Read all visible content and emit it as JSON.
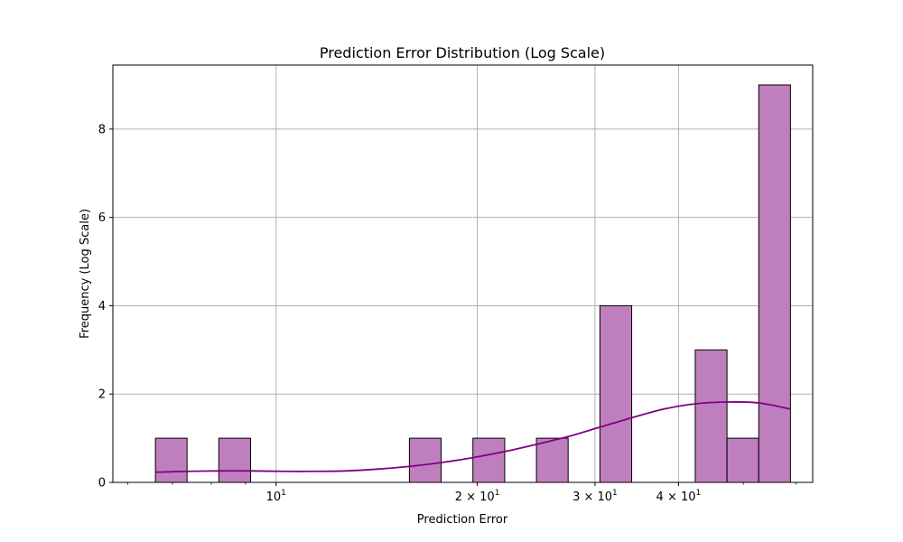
{
  "chart_data": {
    "type": "bar",
    "title": "Prediction Error Distribution (Log Scale)",
    "xlabel": "Prediction Error",
    "ylabel": "Frequency (Log Scale)",
    "x_scale": "log",
    "xlim": [
      5.7,
      63.5
    ],
    "ylim": [
      0,
      9.45
    ],
    "grid": true,
    "bar_color": "#bf7fbf",
    "bar_edge_color": "#000000",
    "kde_color": "#800080",
    "bins": [
      {
        "x0": 6.6,
        "x1": 7.36,
        "count": 1
      },
      {
        "x0": 7.36,
        "x1": 8.21,
        "count": 0
      },
      {
        "x0": 8.21,
        "x1": 9.16,
        "count": 1
      },
      {
        "x0": 9.16,
        "x1": 10.22,
        "count": 0
      },
      {
        "x0": 10.22,
        "x1": 11.4,
        "count": 0
      },
      {
        "x0": 11.4,
        "x1": 12.72,
        "count": 0
      },
      {
        "x0": 12.72,
        "x1": 14.19,
        "count": 0
      },
      {
        "x0": 14.19,
        "x1": 15.83,
        "count": 0
      },
      {
        "x0": 15.83,
        "x1": 17.66,
        "count": 1
      },
      {
        "x0": 17.66,
        "x1": 19.7,
        "count": 0
      },
      {
        "x0": 19.7,
        "x1": 21.98,
        "count": 1
      },
      {
        "x0": 21.98,
        "x1": 24.52,
        "count": 0
      },
      {
        "x0": 24.52,
        "x1": 27.35,
        "count": 1
      },
      {
        "x0": 27.35,
        "x1": 30.51,
        "count": 0
      },
      {
        "x0": 30.51,
        "x1": 34.04,
        "count": 4
      },
      {
        "x0": 34.04,
        "x1": 37.98,
        "count": 0
      },
      {
        "x0": 37.98,
        "x1": 42.37,
        "count": 0
      },
      {
        "x0": 42.37,
        "x1": 47.27,
        "count": 3
      },
      {
        "x0": 47.27,
        "x1": 52.73,
        "count": 1
      },
      {
        "x0": 52.73,
        "x1": 58.82,
        "count": 9
      }
    ],
    "kde": {
      "x": [
        6.6,
        7.4,
        8.2,
        9.2,
        10.2,
        11.4,
        12.7,
        14.2,
        15.8,
        17.7,
        19.7,
        22.0,
        24.5,
        27.4,
        30.5,
        34.0,
        38.0,
        42.4,
        47.3,
        52.7,
        58.8
      ],
      "y": [
        0.23,
        0.25,
        0.26,
        0.26,
        0.25,
        0.25,
        0.26,
        0.3,
        0.36,
        0.45,
        0.56,
        0.7,
        0.86,
        1.04,
        1.25,
        1.46,
        1.66,
        1.78,
        1.82,
        1.8,
        1.66
      ]
    },
    "x_ticks": [
      {
        "value": 10,
        "base": "10",
        "exp": "1",
        "coef": ""
      },
      {
        "value": 20,
        "base": "10",
        "exp": "1",
        "coef": "2"
      },
      {
        "value": 30,
        "base": "10",
        "exp": "1",
        "coef": "3"
      },
      {
        "value": 40,
        "base": "10",
        "exp": "1",
        "coef": "4"
      }
    ],
    "x_minor_ticks": [
      6,
      7,
      8,
      9,
      50,
      60
    ],
    "y_ticks": [
      {
        "value": 0,
        "label": "0"
      },
      {
        "value": 2,
        "label": "2"
      },
      {
        "value": 4,
        "label": "4"
      },
      {
        "value": 6,
        "label": "6"
      },
      {
        "value": 8,
        "label": "8"
      }
    ]
  }
}
